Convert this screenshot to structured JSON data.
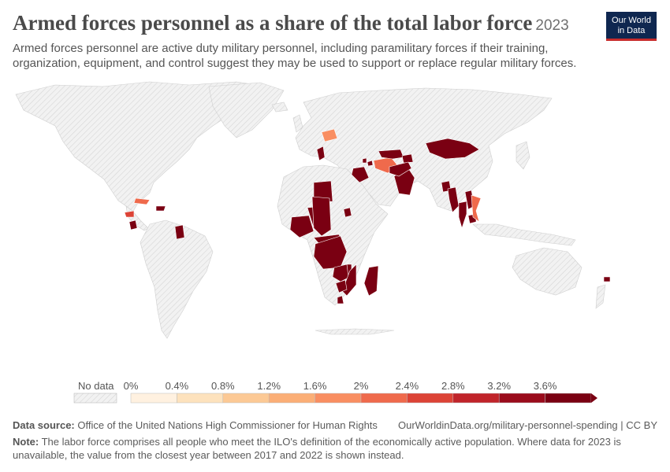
{
  "header": {
    "title": "Armed forces personnel as a share of the total labor force",
    "year": "2023",
    "subtitle": "Armed forces personnel are active duty military personnel, including paramilitary forces if their training, organization, equipment, and control suggest they may be used to support or replace regular military forces."
  },
  "logo": {
    "line1": "Our World",
    "line2": "in Data"
  },
  "legend": {
    "no_data_label": "No data",
    "ticks": [
      "0%",
      "0.4%",
      "0.8%",
      "1.2%",
      "1.6%",
      "2%",
      "2.4%",
      "2.8%",
      "3.2%",
      "3.6%"
    ],
    "bins": [
      0,
      0.4,
      0.8,
      1.2,
      1.6,
      2.0,
      2.4,
      2.8,
      3.2,
      3.6,
      4.0
    ],
    "colors": [
      "#fff1e0",
      "#fde2bd",
      "#fcc995",
      "#fbae76",
      "#f98e61",
      "#ef6a4c",
      "#dc4336",
      "#c0242a",
      "#9a0c1c",
      "#7a0012"
    ]
  },
  "map_colors": {
    "no_data_fill": "#efefef",
    "hatch": "#d6d6d6",
    "border": "#c8c8c8"
  },
  "chart_data": {
    "type": "choropleth",
    "unit": "%",
    "year": "2023",
    "scale": {
      "min": 0,
      "max": 4.0
    },
    "countries": [
      {
        "name": "Belarus",
        "value": 1.7
      },
      {
        "name": "Turkmenistan",
        "value": 2.2
      },
      {
        "name": "Azerbaijan",
        "value": 3.7
      },
      {
        "name": "Armenia",
        "value": 3.8
      },
      {
        "name": "Uzbekistan",
        "value": 3.6
      },
      {
        "name": "Tajikistan",
        "value": 3.7
      },
      {
        "name": "Mongolia",
        "value": 3.8
      },
      {
        "name": "Pakistan",
        "value": 3.7
      },
      {
        "name": "Afghanistan",
        "value": 3.6
      },
      {
        "name": "Iraq",
        "value": 3.8
      },
      {
        "name": "Libya",
        "value": 3.7
      },
      {
        "name": "Greece",
        "value": 3.7
      },
      {
        "name": "Bangladesh",
        "value": 3.6
      },
      {
        "name": "Myanmar",
        "value": 3.8
      },
      {
        "name": "Thailand",
        "value": 3.7
      },
      {
        "name": "Cambodia",
        "value": 3.6
      },
      {
        "name": "Laos",
        "value": 3.7
      },
      {
        "name": "Vietnam",
        "value": 2.1
      },
      {
        "name": "Cuba",
        "value": 2.3
      },
      {
        "name": "Haiti",
        "value": 3.6
      },
      {
        "name": "Honduras",
        "value": 2.6
      },
      {
        "name": "El Salvador",
        "value": 3.7
      },
      {
        "name": "Guyana",
        "value": 3.7
      },
      {
        "name": "Niger",
        "value": 3.8
      },
      {
        "name": "Nigeria",
        "value": 3.7
      },
      {
        "name": "Chad",
        "value": 3.8
      },
      {
        "name": "Central African Republic",
        "value": 3.7
      },
      {
        "name": "DR Congo",
        "value": 3.8
      },
      {
        "name": "Zambia",
        "value": 3.7
      },
      {
        "name": "Malawi",
        "value": 3.6
      },
      {
        "name": "Mozambique",
        "value": 3.7
      },
      {
        "name": "Zimbabwe",
        "value": 3.8
      },
      {
        "name": "Eswatini",
        "value": 3.6
      },
      {
        "name": "Madagascar",
        "value": 3.7
      },
      {
        "name": "Eritrea",
        "value": 3.8
      },
      {
        "name": "Fiji",
        "value": 3.6
      }
    ]
  },
  "footer": {
    "source_label": "Data source:",
    "source_text": "Office of the United Nations High Commissioner for Human Rights",
    "url_license": "OurWorldinData.org/military-personnel-spending | CC BY",
    "note_label": "Note:",
    "note_text": "The labor force comprises all people who meet the ILO's definition of the economically active population. Where data for 2023 is unavailable, the value from the closest year between 2017 and 2022 is shown instead."
  }
}
